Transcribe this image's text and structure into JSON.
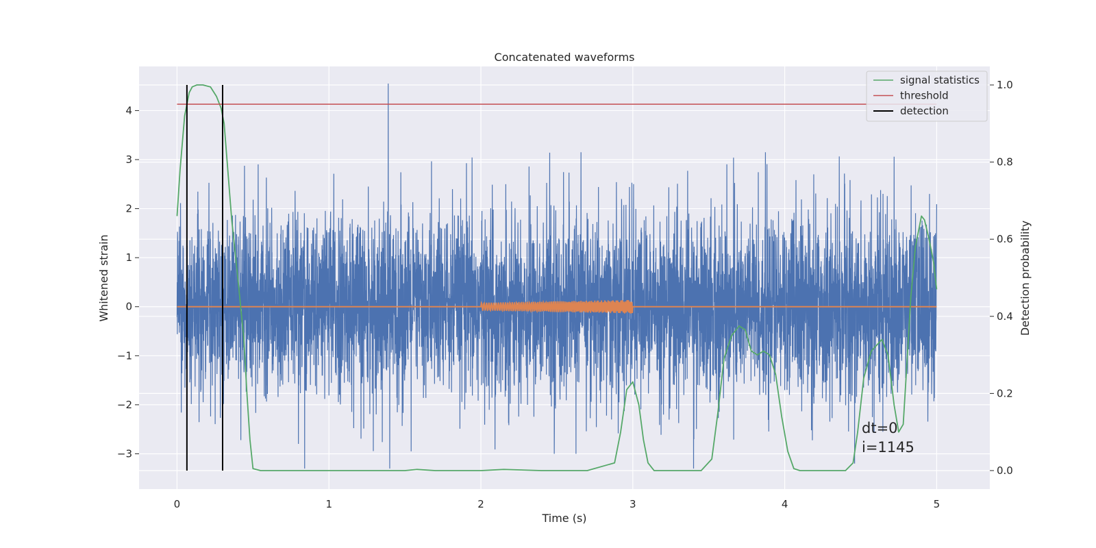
{
  "chart_data": {
    "type": "line",
    "title": "Concatenated waveforms",
    "xlabel": "Time (s)",
    "ylabel": "Whitened strain",
    "y2label": "Detection probability",
    "xlim": [
      -0.25,
      5.35
    ],
    "ylim": [
      -3.72,
      4.9
    ],
    "y2lim": [
      -0.048,
      1.048
    ],
    "xticks": [
      "0",
      "1",
      "2",
      "3",
      "4",
      "5"
    ],
    "yticks": [
      "−3",
      "−2",
      "−1",
      "0",
      "1",
      "2",
      "3",
      "4"
    ],
    "y2ticks": [
      "0.0",
      "0.2",
      "0.4",
      "0.6",
      "0.8",
      "1.0"
    ],
    "grid": true,
    "legend_position": "top-right",
    "legend": [
      {
        "label": "signal statistics",
        "color": "#55a868",
        "kind": "line"
      },
      {
        "label": "threshold",
        "color": "#c44e52",
        "kind": "line"
      },
      {
        "label": "detection",
        "color": "#000000",
        "kind": "line"
      }
    ],
    "series": [
      {
        "name": "strain",
        "axis": "left",
        "color": "#4c72b0",
        "x_range": [
          0,
          5
        ],
        "typical_amplitude": 1.2,
        "spikes": [
          {
            "x": 1.39,
            "y": 4.55
          },
          {
            "x": 0.84,
            "y": -3.3
          },
          {
            "x": 1.4,
            "y": -3.3
          },
          {
            "x": 3.4,
            "y": -3.3
          },
          {
            "x": 4.46,
            "y": -3.2
          }
        ]
      },
      {
        "name": "injected waveform",
        "axis": "left",
        "color": "#dd8452",
        "x_range": [
          0,
          5
        ],
        "chirp_range": [
          2.0,
          3.0
        ],
        "chirp_amplitude": [
          0.08,
          0.14
        ]
      },
      {
        "name": "signal statistics",
        "axis": "right",
        "color": "#55a868",
        "x": [
          0.0,
          0.02,
          0.05,
          0.08,
          0.1,
          0.13,
          0.17,
          0.22,
          0.26,
          0.29,
          0.31,
          0.33,
          0.36,
          0.4,
          0.44,
          0.46,
          0.48,
          0.5,
          0.55,
          0.8,
          1.2,
          1.4,
          1.5,
          1.58,
          1.7,
          2.0,
          2.15,
          2.4,
          2.7,
          2.88,
          2.92,
          2.96,
          3.0,
          3.04,
          3.07,
          3.1,
          3.14,
          3.2,
          3.45,
          3.52,
          3.56,
          3.6,
          3.65,
          3.7,
          3.74,
          3.78,
          3.82,
          3.86,
          3.9,
          3.94,
          3.98,
          4.02,
          4.06,
          4.1,
          4.4,
          4.45,
          4.48,
          4.52,
          4.57,
          4.64,
          4.68,
          4.72,
          4.75,
          4.78,
          4.8,
          4.83,
          4.86,
          4.9,
          4.92,
          4.95,
          4.98,
          5.0
        ],
        "y": [
          0.66,
          0.78,
          0.92,
          0.98,
          0.995,
          1.0,
          1.0,
          0.995,
          0.97,
          0.94,
          0.9,
          0.8,
          0.65,
          0.5,
          0.34,
          0.2,
          0.08,
          0.005,
          0.0,
          0.0,
          0.0,
          0.0,
          0.0,
          0.003,
          0.0,
          0.0,
          0.003,
          0.0,
          0.0,
          0.02,
          0.1,
          0.21,
          0.23,
          0.17,
          0.08,
          0.02,
          0.0,
          0.0,
          0.0,
          0.03,
          0.15,
          0.29,
          0.35,
          0.375,
          0.365,
          0.31,
          0.3,
          0.31,
          0.3,
          0.25,
          0.14,
          0.05,
          0.005,
          0.0,
          0.0,
          0.02,
          0.1,
          0.24,
          0.31,
          0.34,
          0.3,
          0.17,
          0.1,
          0.12,
          0.25,
          0.45,
          0.58,
          0.66,
          0.65,
          0.6,
          0.54,
          0.47
        ]
      },
      {
        "name": "threshold",
        "axis": "right",
        "color": "#c44e52",
        "x": [
          0,
          5
        ],
        "y": [
          0.95,
          0.95
        ]
      },
      {
        "name": "detection",
        "axis": "right",
        "color": "#000000",
        "vlines_x": [
          0.065,
          0.3
        ],
        "vlines_y": [
          0.0,
          1.0
        ]
      }
    ],
    "annotations": [
      "dt=0",
      "i=1145"
    ]
  }
}
